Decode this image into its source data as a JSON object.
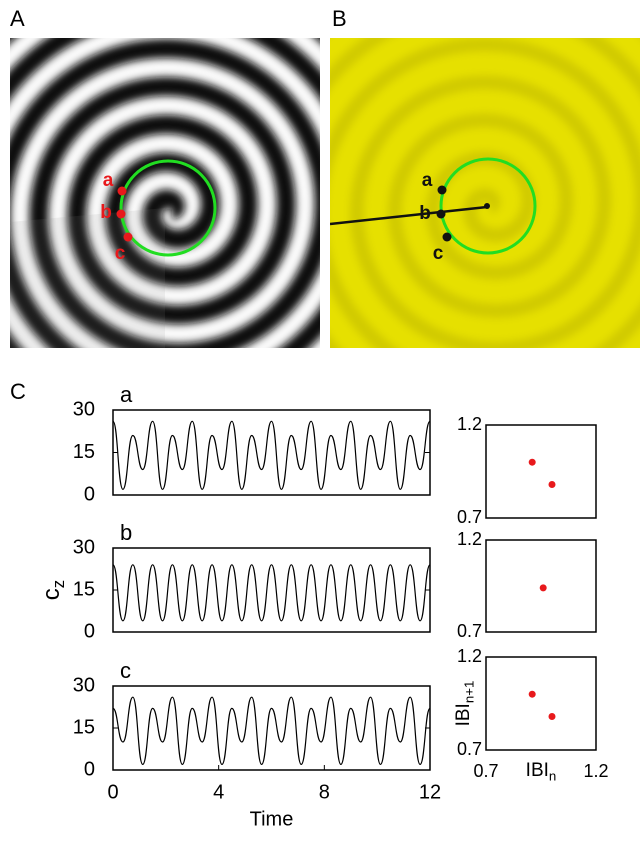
{
  "figure": {
    "panel_labels": [
      "A",
      "B",
      "C"
    ],
    "point_labels": [
      "a",
      "b",
      "c"
    ]
  },
  "chart_data": [
    {
      "type": "line",
      "title": "a",
      "color": "#000000",
      "x": [
        0,
        0.375,
        0.75,
        1.125,
        1.5,
        1.875,
        2.25,
        2.625,
        3,
        3.375,
        3.75,
        4.125,
        4.5,
        4.875,
        5.25,
        5.625,
        6,
        6.375,
        6.75,
        7.125,
        7.5,
        7.875,
        8.25,
        8.625,
        9,
        9.375,
        9.75,
        10.125,
        10.5,
        10.875,
        11.25,
        11.625,
        12
      ],
      "values": [
        26,
        2,
        21,
        9,
        26,
        2,
        21,
        9,
        26,
        2,
        21,
        9,
        26,
        2,
        21,
        9,
        26,
        2,
        21,
        9,
        26,
        2,
        21,
        9,
        26,
        2,
        21,
        9,
        26,
        2,
        21,
        9,
        26
      ],
      "xlim": [
        0,
        12
      ],
      "ylim": [
        0,
        30
      ],
      "yticks": [
        0,
        15,
        30
      ]
    },
    {
      "type": "line",
      "title": "b",
      "color": "#000000",
      "ylabel": "c",
      "ylabel_subscript": "z",
      "x": [
        0,
        0.375,
        0.75,
        1.125,
        1.5,
        1.875,
        2.25,
        2.625,
        3,
        3.375,
        3.75,
        4.125,
        4.5,
        4.875,
        5.25,
        5.625,
        6,
        6.375,
        6.75,
        7.125,
        7.5,
        7.875,
        8.25,
        8.625,
        9,
        9.375,
        9.75,
        10.125,
        10.5,
        10.875,
        11.25,
        11.625,
        12
      ],
      "values": [
        24,
        4,
        24,
        4,
        24,
        4,
        24,
        4,
        24,
        4,
        24,
        4,
        24,
        4,
        24,
        4,
        24,
        4,
        24,
        4,
        24,
        4,
        24,
        4,
        24,
        4,
        24,
        4,
        24,
        4,
        24,
        4,
        24
      ],
      "xlim": [
        0,
        12
      ],
      "ylim": [
        0,
        30
      ],
      "yticks": [
        0,
        15,
        30
      ]
    },
    {
      "type": "line",
      "title": "c",
      "color": "#000000",
      "xlabel": "Time",
      "x": [
        0,
        0.375,
        0.75,
        1.125,
        1.5,
        1.875,
        2.25,
        2.625,
        3,
        3.375,
        3.75,
        4.125,
        4.5,
        4.875,
        5.25,
        5.625,
        6,
        6.375,
        6.75,
        7.125,
        7.5,
        7.875,
        8.25,
        8.625,
        9,
        9.375,
        9.75,
        10.125,
        10.5,
        10.875,
        11.25,
        11.625,
        12
      ],
      "values": [
        22,
        10,
        26,
        2,
        22,
        10,
        26,
        2,
        22,
        10,
        26,
        2,
        22,
        10,
        26,
        2,
        22,
        10,
        26,
        2,
        22,
        10,
        26,
        2,
        22,
        10,
        26,
        2,
        22,
        10,
        26,
        2,
        22
      ],
      "xlim": [
        0,
        12
      ],
      "ylim": [
        0,
        30
      ],
      "yticks": [
        0,
        15,
        30
      ],
      "xticks": [
        0,
        4,
        8,
        12
      ]
    },
    {
      "type": "scatter",
      "color": "#e8191c",
      "x": [
        0.91,
        1.0
      ],
      "values": [
        1.0,
        0.88
      ],
      "xlim": [
        0.7,
        1.2
      ],
      "ylim": [
        0.7,
        1.2
      ],
      "yticks": [
        0.7,
        1.2
      ]
    },
    {
      "type": "scatter",
      "color": "#e8191c",
      "x": [
        0.96
      ],
      "values": [
        0.94
      ],
      "xlim": [
        0.7,
        1.2
      ],
      "ylim": [
        0.7,
        1.2
      ],
      "yticks": [
        0.7,
        1.2
      ]
    },
    {
      "type": "scatter",
      "color": "#e8191c",
      "x": [
        0.91,
        1.0
      ],
      "values": [
        1.0,
        0.88
      ],
      "xlim": [
        0.7,
        1.2
      ],
      "ylim": [
        0.7,
        1.2
      ],
      "yticks": [
        0.7,
        1.2
      ],
      "xticks": [
        0.7,
        1.2
      ],
      "xlabel": "IBI",
      "xlabel_subscript": "n",
      "ylabel": "IBI",
      "ylabel_subscript": "n+1"
    }
  ]
}
